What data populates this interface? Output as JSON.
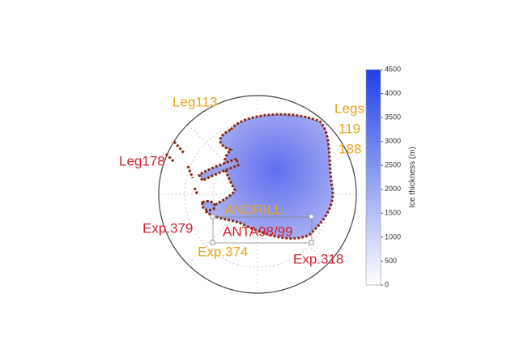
{
  "map": {
    "labels": [
      {
        "text": "Leg113",
        "color": "#eaa41a"
      },
      {
        "text": "Legs",
        "color": "#eaa41a"
      },
      {
        "text": "119",
        "color": "#eaa41a"
      },
      {
        "text": "188",
        "color": "#eaa41a"
      },
      {
        "text": "Leg178",
        "color": "#d41f2a"
      },
      {
        "text": "ANDRILL",
        "color": "#eaa41a"
      },
      {
        "text": "Exp.379",
        "color": "#d41f2a"
      },
      {
        "text": "ANTA98/99",
        "color": "#d41f2a"
      },
      {
        "text": "Exp.374",
        "color": "#eaa41a"
      },
      {
        "text": "Exp.318",
        "color": "#d41f2a"
      }
    ],
    "colorbar": {
      "label": "Ice thickness (m)",
      "lim": [
        0,
        4500
      ],
      "ticks": [
        0,
        500,
        1000,
        1500,
        2000,
        2500,
        3000,
        3500,
        4000,
        4500
      ],
      "colors": [
        "#ffffff",
        "#1f3fe6"
      ]
    }
  }
}
